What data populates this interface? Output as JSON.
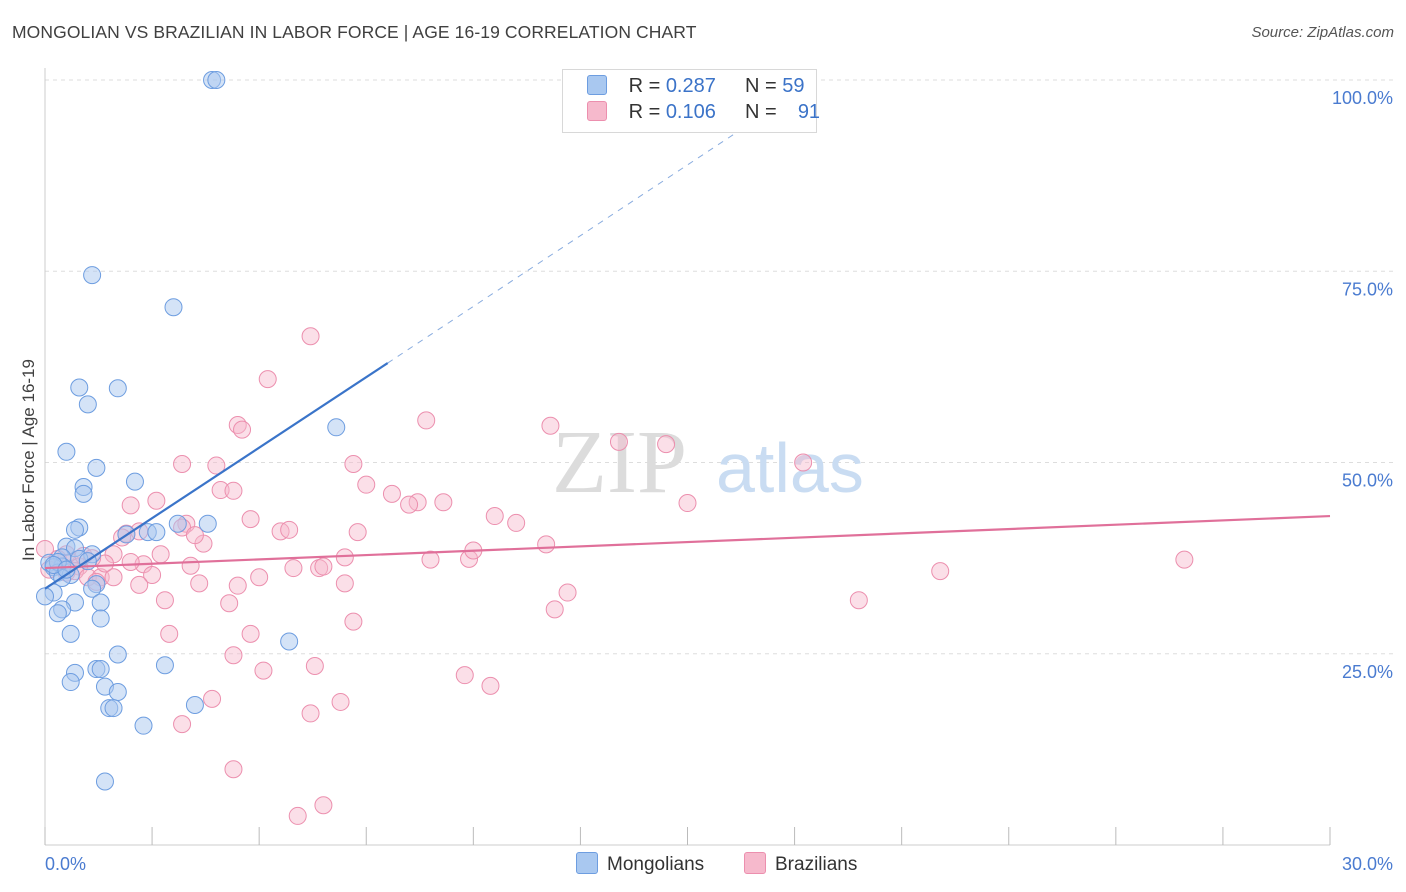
{
  "header": {
    "title": "MONGOLIAN VS BRAZILIAN IN LABOR FORCE | AGE 16-19 CORRELATION CHART",
    "source": "Source: ZipAtlas.com"
  },
  "watermark": {
    "zip": "ZIP",
    "atlas": "atlas"
  },
  "legend": {
    "mongolian": {
      "r_label": "R =",
      "r_value": "0.287",
      "n_label": "N =",
      "n_value": "59"
    },
    "brazilian": {
      "r_label": "R =",
      "r_value": "0.106",
      "n_label": "N =",
      "n_value": "91"
    }
  },
  "bottom_legend": {
    "mongolians": "Mongolians",
    "brazilians": "Brazilians"
  },
  "colors": {
    "mongolian_fill": "#a9c8f0",
    "mongolian_stroke": "#6d9de0",
    "mongolian_line": "#3a74c9",
    "brazilian_fill": "#f6b9cc",
    "brazilian_stroke": "#ec8fae",
    "brazilian_line": "#e0709a",
    "tick_color": "#4a7bd0",
    "grid": "#dddddd"
  },
  "chart_data": {
    "type": "scatter",
    "title": "MONGOLIAN VS BRAZILIAN IN LABOR FORCE | AGE 16-19 CORRELATION CHART",
    "xlabel": "",
    "ylabel": "In Labor Force | Age 16-19",
    "xlim": [
      0,
      30
    ],
    "ylim": [
      0,
      100
    ],
    "x_tick_labels": [
      "0.0%",
      "30.0%"
    ],
    "y_ticks": [
      25,
      50,
      75,
      100
    ],
    "y_tick_labels": [
      "25.0%",
      "50.0%",
      "75.0%",
      "100.0%"
    ],
    "series": [
      {
        "name": "Mongolians",
        "R": 0.287,
        "N": 59,
        "trend": {
          "x0": 0,
          "y0": 33.5,
          "x1": 8.0,
          "y1": 63,
          "dashed_to_x": 18,
          "dashed_to_y": 100
        },
        "points": [
          [
            3.9,
            100
          ],
          [
            4.0,
            100
          ],
          [
            1.1,
            74.5
          ],
          [
            3.0,
            70.3
          ],
          [
            0.8,
            59.8
          ],
          [
            1.7,
            59.7
          ],
          [
            1.0,
            57.6
          ],
          [
            6.8,
            54.6
          ],
          [
            0.5,
            51.4
          ],
          [
            1.2,
            49.3
          ],
          [
            2.1,
            47.5
          ],
          [
            0.9,
            46.8
          ],
          [
            0.9,
            45.9
          ],
          [
            3.8,
            42.0
          ],
          [
            3.1,
            42.0
          ],
          [
            0.8,
            41.5
          ],
          [
            0.7,
            41.2
          ],
          [
            2.4,
            40.9
          ],
          [
            2.6,
            40.9
          ],
          [
            1.9,
            40.6
          ],
          [
            0.5,
            39.0
          ],
          [
            0.7,
            38.8
          ],
          [
            1.1,
            38.0
          ],
          [
            0.4,
            37.6
          ],
          [
            0.8,
            37.4
          ],
          [
            1.0,
            37.1
          ],
          [
            0.1,
            36.9
          ],
          [
            0.4,
            36.4
          ],
          [
            0.2,
            36.3
          ],
          [
            0.3,
            35.6
          ],
          [
            0.6,
            35.3
          ],
          [
            0.4,
            34.9
          ],
          [
            1.2,
            34.1
          ],
          [
            1.1,
            33.5
          ],
          [
            0.2,
            33.0
          ],
          [
            0.0,
            32.5
          ],
          [
            0.7,
            31.7
          ],
          [
            1.3,
            31.7
          ],
          [
            0.4,
            30.8
          ],
          [
            0.3,
            30.3
          ],
          [
            1.3,
            29.6
          ],
          [
            0.6,
            27.6
          ],
          [
            5.7,
            26.6
          ],
          [
            1.7,
            24.9
          ],
          [
            2.8,
            23.5
          ],
          [
            1.2,
            23.0
          ],
          [
            1.3,
            23.0
          ],
          [
            0.7,
            22.5
          ],
          [
            0.6,
            21.3
          ],
          [
            1.4,
            20.7
          ],
          [
            1.7,
            20.0
          ],
          [
            3.5,
            18.3
          ],
          [
            1.5,
            17.9
          ],
          [
            1.6,
            17.9
          ],
          [
            2.3,
            15.6
          ],
          [
            1.4,
            8.3
          ],
          [
            0.3,
            37.0
          ],
          [
            0.2,
            36.6
          ],
          [
            0.5,
            36.0
          ]
        ]
      },
      {
        "name": "Brazilians",
        "R": 0.106,
        "N": 91,
        "trend": {
          "x0": 0,
          "y0": 36.2,
          "x1": 30,
          "y1": 43.0
        },
        "points": [
          [
            6.2,
            66.5
          ],
          [
            5.2,
            60.9
          ],
          [
            8.9,
            55.5
          ],
          [
            4.5,
            54.9
          ],
          [
            4.6,
            54.3
          ],
          [
            11.8,
            54.8
          ],
          [
            13.4,
            52.7
          ],
          [
            14.5,
            52.4
          ],
          [
            17.7,
            50.0
          ],
          [
            3.2,
            49.8
          ],
          [
            4.0,
            49.6
          ],
          [
            7.2,
            49.8
          ],
          [
            7.5,
            47.1
          ],
          [
            4.1,
            46.4
          ],
          [
            4.4,
            46.3
          ],
          [
            8.1,
            45.9
          ],
          [
            2.6,
            45.0
          ],
          [
            8.7,
            44.8
          ],
          [
            9.3,
            44.8
          ],
          [
            8.5,
            44.5
          ],
          [
            15.0,
            44.7
          ],
          [
            2.0,
            44.4
          ],
          [
            10.5,
            43.0
          ],
          [
            11.0,
            42.1
          ],
          [
            3.3,
            42.0
          ],
          [
            3.2,
            41.5
          ],
          [
            5.5,
            41.0
          ],
          [
            5.7,
            41.2
          ],
          [
            7.3,
            40.9
          ],
          [
            1.9,
            40.7
          ],
          [
            2.2,
            41.0
          ],
          [
            1.8,
            40.2
          ],
          [
            3.7,
            39.4
          ],
          [
            11.7,
            39.3
          ],
          [
            1.6,
            38.0
          ],
          [
            0.0,
            38.7
          ],
          [
            0.5,
            38.0
          ],
          [
            7.0,
            37.6
          ],
          [
            9.0,
            37.3
          ],
          [
            9.9,
            37.4
          ],
          [
            0.3,
            37.4
          ],
          [
            0.6,
            37.0
          ],
          [
            2.3,
            36.7
          ],
          [
            0.8,
            36.4
          ],
          [
            3.4,
            36.5
          ],
          [
            5.8,
            36.2
          ],
          [
            6.4,
            36.2
          ],
          [
            6.5,
            36.4
          ],
          [
            26.6,
            37.3
          ],
          [
            20.9,
            35.8
          ],
          [
            0.5,
            35.6
          ],
          [
            0.7,
            35.8
          ],
          [
            1.0,
            35.0
          ],
          [
            1.3,
            35.0
          ],
          [
            1.6,
            35.0
          ],
          [
            2.5,
            35.3
          ],
          [
            5.0,
            35.0
          ],
          [
            1.2,
            34.4
          ],
          [
            3.6,
            34.2
          ],
          [
            4.5,
            33.9
          ],
          [
            7.0,
            34.2
          ],
          [
            2.2,
            34.0
          ],
          [
            12.2,
            33.0
          ],
          [
            2.8,
            32.0
          ],
          [
            4.3,
            31.6
          ],
          [
            19.0,
            32.0
          ],
          [
            11.9,
            30.8
          ],
          [
            7.2,
            29.2
          ],
          [
            2.9,
            27.6
          ],
          [
            4.8,
            27.6
          ],
          [
            4.4,
            24.8
          ],
          [
            6.3,
            23.4
          ],
          [
            5.1,
            22.8
          ],
          [
            9.8,
            22.2
          ],
          [
            10.4,
            20.8
          ],
          [
            3.9,
            19.1
          ],
          [
            6.9,
            18.7
          ],
          [
            6.2,
            17.2
          ],
          [
            3.2,
            15.8
          ],
          [
            4.4,
            9.9
          ],
          [
            6.5,
            5.2
          ],
          [
            5.9,
            3.8
          ],
          [
            0.1,
            36.0
          ],
          [
            0.9,
            37.8
          ],
          [
            1.4,
            36.8
          ],
          [
            2.0,
            37.0
          ],
          [
            2.7,
            38.0
          ],
          [
            3.5,
            40.5
          ],
          [
            4.8,
            42.6
          ],
          [
            10.0,
            38.5
          ],
          [
            1.1,
            37.5
          ]
        ]
      }
    ]
  }
}
